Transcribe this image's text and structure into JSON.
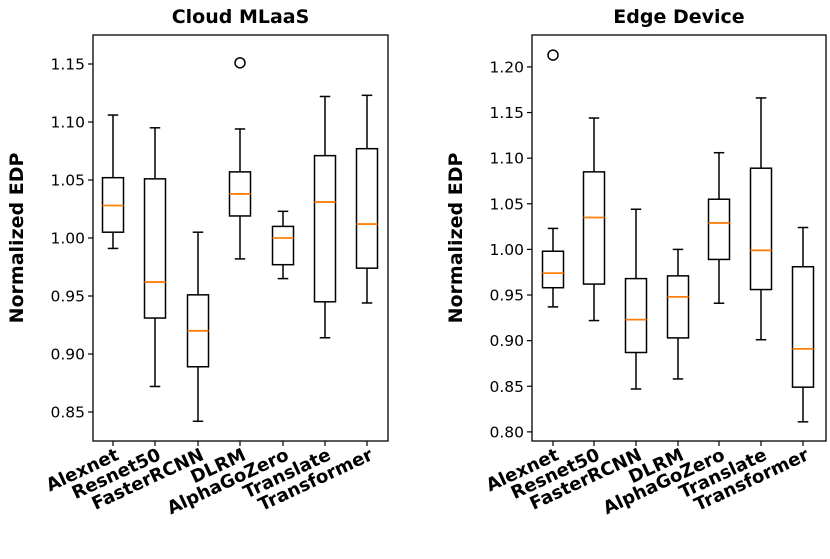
{
  "chart_data": [
    {
      "type": "box",
      "title": "Cloud MLaaS",
      "ylabel": "Normalized EDP",
      "ylim": [
        0.825,
        1.175
      ],
      "yticks": [
        0.85,
        0.9,
        0.95,
        1.0,
        1.05,
        1.1,
        1.15
      ],
      "ytick_labels": [
        "0.85",
        "0.90",
        "0.95",
        "1.00",
        "1.05",
        "1.10",
        "1.15"
      ],
      "categories": [
        "Alexnet",
        "Resnet50",
        "FasterRCNN",
        "DLRM",
        "AlphaGoZero",
        "Translate",
        "Transformer"
      ],
      "boxes": [
        {
          "whislo": 0.991,
          "q1": 1.005,
          "med": 1.028,
          "q3": 1.052,
          "whishi": 1.106,
          "fliers": []
        },
        {
          "whislo": 0.872,
          "q1": 0.931,
          "med": 0.962,
          "q3": 1.051,
          "whishi": 1.095,
          "fliers": []
        },
        {
          "whislo": 0.842,
          "q1": 0.889,
          "med": 0.92,
          "q3": 0.951,
          "whishi": 1.005,
          "fliers": []
        },
        {
          "whislo": 0.982,
          "q1": 1.019,
          "med": 1.038,
          "q3": 1.057,
          "whishi": 1.094,
          "fliers": [
            1.151
          ]
        },
        {
          "whislo": 0.965,
          "q1": 0.977,
          "med": 1.0,
          "q3": 1.01,
          "whishi": 1.023,
          "fliers": []
        },
        {
          "whislo": 0.914,
          "q1": 0.945,
          "med": 1.031,
          "q3": 1.071,
          "whishi": 1.122,
          "fliers": []
        },
        {
          "whislo": 0.944,
          "q1": 0.974,
          "med": 1.012,
          "q3": 1.077,
          "whishi": 1.123,
          "fliers": []
        }
      ]
    },
    {
      "type": "box",
      "title": "Edge Device",
      "ylabel": "Normalized EDP",
      "ylim": [
        0.79,
        1.235
      ],
      "yticks": [
        0.8,
        0.85,
        0.9,
        0.95,
        1.0,
        1.05,
        1.1,
        1.15,
        1.2
      ],
      "ytick_labels": [
        "0.80",
        "0.85",
        "0.90",
        "0.95",
        "1.00",
        "1.05",
        "1.10",
        "1.15",
        "1.20"
      ],
      "categories": [
        "Alexnet",
        "Resnet50",
        "FasterRCNN",
        "DLRM",
        "AlphaGoZero",
        "Translate",
        "Transformer"
      ],
      "boxes": [
        {
          "whislo": 0.937,
          "q1": 0.958,
          "med": 0.974,
          "q3": 0.998,
          "whishi": 1.023,
          "fliers": [
            1.213
          ]
        },
        {
          "whislo": 0.922,
          "q1": 0.962,
          "med": 1.035,
          "q3": 1.085,
          "whishi": 1.144,
          "fliers": []
        },
        {
          "whislo": 0.847,
          "q1": 0.887,
          "med": 0.923,
          "q3": 0.968,
          "whishi": 1.044,
          "fliers": []
        },
        {
          "whislo": 0.858,
          "q1": 0.903,
          "med": 0.948,
          "q3": 0.971,
          "whishi": 1.0,
          "fliers": []
        },
        {
          "whislo": 0.941,
          "q1": 0.989,
          "med": 1.029,
          "q3": 1.055,
          "whishi": 1.106,
          "fliers": []
        },
        {
          "whislo": 0.901,
          "q1": 0.956,
          "med": 0.999,
          "q3": 1.089,
          "whishi": 1.166,
          "fliers": []
        },
        {
          "whislo": 0.811,
          "q1": 0.849,
          "med": 0.891,
          "q3": 0.981,
          "whishi": 1.024,
          "fliers": []
        }
      ]
    }
  ],
  "colors": {
    "median": "#ff7f0e",
    "line": "#000000"
  }
}
